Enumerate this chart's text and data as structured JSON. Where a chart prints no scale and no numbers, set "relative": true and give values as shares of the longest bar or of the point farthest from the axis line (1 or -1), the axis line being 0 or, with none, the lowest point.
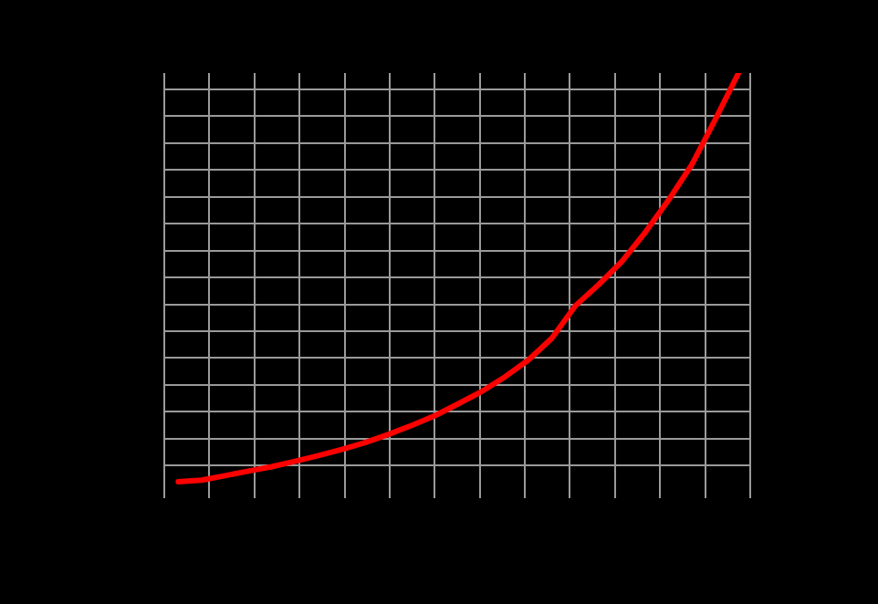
{
  "chart_data": {
    "type": "line",
    "relative": true,
    "grid": true,
    "marker": "none",
    "line_style": "solid",
    "categories": [
      null,
      null,
      null,
      null,
      null,
      null,
      null,
      null,
      null,
      null,
      null,
      null,
      null,
      null,
      null,
      null,
      null,
      null,
      null,
      null,
      null,
      null,
      null,
      null,
      null
    ],
    "series": [
      {
        "color": "#ff0000",
        "values": [
          0,
          0.004,
          0.015,
          0.026,
          0.037,
          0.05,
          0.064,
          0.079,
          0.096,
          0.116,
          0.138,
          0.162,
          0.191,
          0.221,
          0.257,
          0.298,
          0.351,
          0.43,
          0.482,
          0.539,
          0.61,
          0.689,
          0.776,
          0.886,
          1
        ]
      }
    ]
  }
}
